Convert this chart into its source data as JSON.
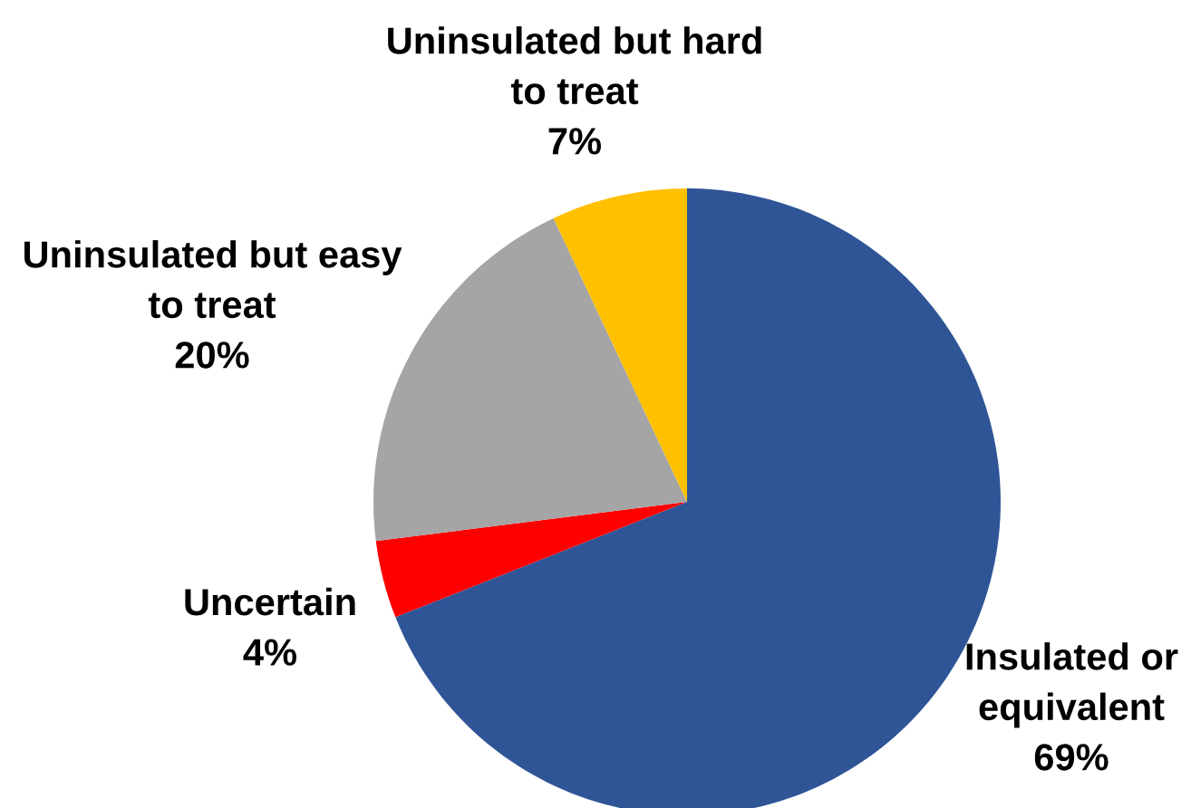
{
  "chart_data": {
    "type": "pie",
    "categories": [
      "Insulated or\nequivalent",
      "Uncertain",
      "Uninsulated but easy\nto treat",
      "Uninsulated but hard\nto treat"
    ],
    "values": [
      69,
      4,
      20,
      7
    ],
    "value_labels": [
      "69%",
      "4%",
      "20%",
      "7%"
    ],
    "colors": [
      "#2f5597",
      "#ff0000",
      "#a5a5a5",
      "#ffc000"
    ]
  }
}
